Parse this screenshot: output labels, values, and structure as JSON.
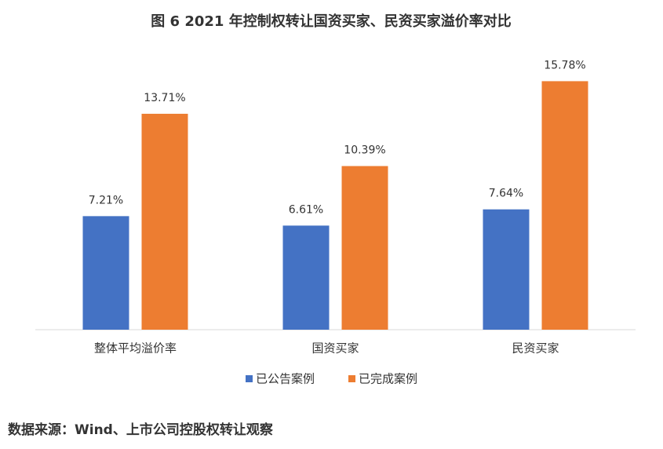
{
  "chart_data": {
    "type": "bar",
    "title": "图 6 2021 年控制权转让国资买家、民资买家溢价率对比",
    "categories": [
      "整体平均溢价率",
      "国资买家",
      "民资买家"
    ],
    "series": [
      {
        "name": "已公告案例",
        "color": "#4472c4",
        "values": [
          7.21,
          6.61,
          7.64
        ],
        "value_labels": [
          "7.21%",
          "6.61%",
          "7.64%"
        ]
      },
      {
        "name": "已完成案例",
        "color": "#ed7d31",
        "values": [
          13.71,
          10.39,
          15.78
        ],
        "value_labels": [
          "13.71%",
          "10.39%",
          "15.78%"
        ]
      }
    ],
    "ylim": [
      0,
      16
    ],
    "legend": "bottom",
    "source": "数据来源：Wind、上市公司控股权转让观察"
  }
}
